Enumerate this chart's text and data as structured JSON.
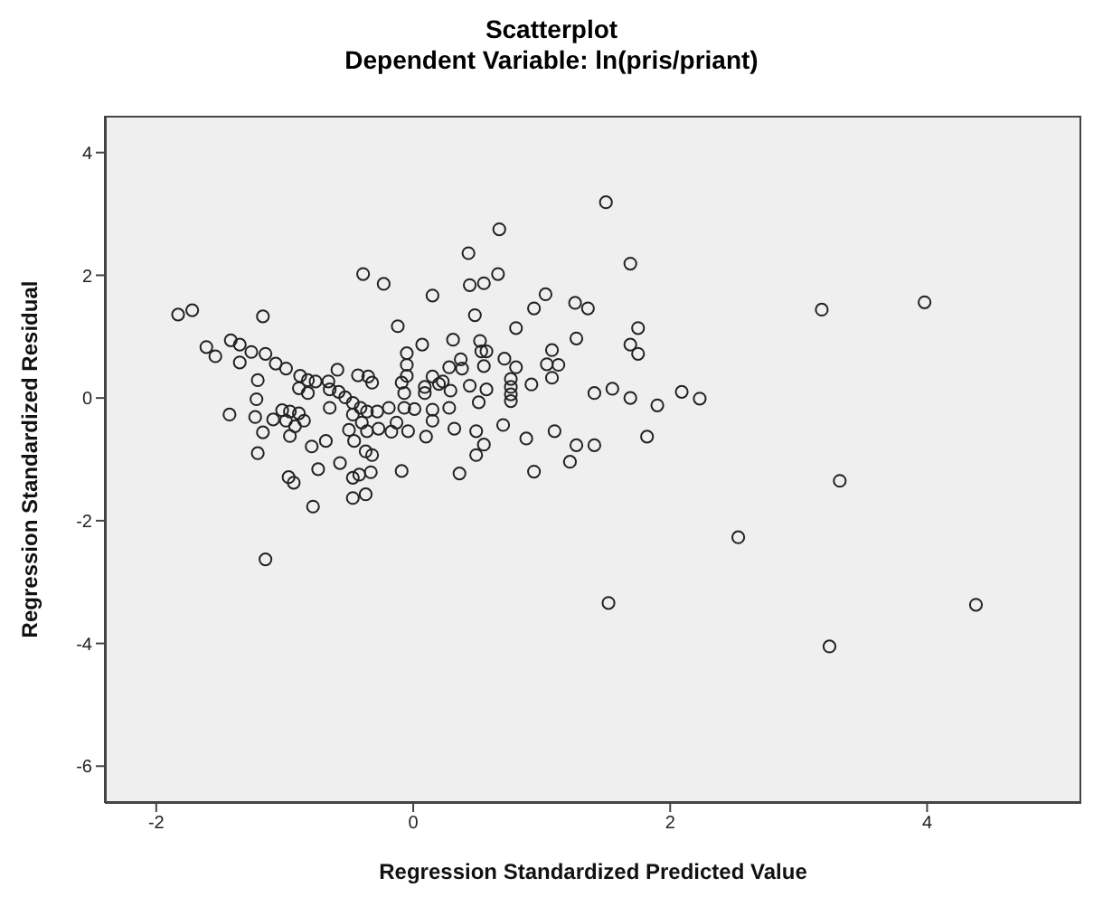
{
  "chart_data": {
    "type": "scatter",
    "title": "Scatterplot",
    "subtitle": "Dependent Variable: ln(pris/priant)",
    "xlabel": "Regression Standardized Predicted Value",
    "ylabel": "Regression Standardized Residual",
    "xlim": [
      -2.4,
      5.2
    ],
    "ylim": [
      -6.6,
      4.6
    ],
    "xticks": [
      -2,
      0,
      2,
      4
    ],
    "yticks": [
      -6,
      -4,
      -2,
      0,
      2,
      4
    ],
    "grid": false,
    "marker": "circle",
    "series": [
      {
        "color": "#222222",
        "x": [
          0.43,
          -0.39,
          -0.23,
          0.44,
          0.55,
          0.66,
          0.15,
          -1.17,
          -1.83,
          -1.72,
          0.48,
          1.03,
          0.94,
          1.26,
          1.36,
          -0.12,
          0.8,
          1.27,
          -1.61,
          -1.54,
          -1.42,
          -1.35,
          -1.35,
          -1.26,
          -1.15,
          -1.07,
          -0.99,
          -1.21,
          -1.22,
          -1.43,
          -1.23,
          -1.17,
          -1.21,
          -1.09,
          -1.02,
          -0.96,
          -0.89,
          -0.99,
          -0.92,
          -0.85,
          -0.96,
          -0.88,
          -0.82,
          -0.89,
          -0.82,
          -0.76,
          -0.66,
          -0.59,
          -0.65,
          -0.65,
          -0.58,
          -0.53,
          -0.47,
          -0.41,
          -0.36,
          -0.28,
          -0.43,
          -0.35,
          -0.32,
          -0.47,
          -0.5,
          -0.4,
          -0.36,
          -0.27,
          -0.19,
          -0.17,
          -0.46,
          -0.37,
          -0.32,
          -0.68,
          -0.79,
          -0.57,
          -0.74,
          -0.97,
          -0.93,
          -0.47,
          -0.42,
          -0.33,
          -0.47,
          -0.37,
          -0.78,
          -1.15,
          -0.09,
          -0.05,
          -0.05,
          -0.05,
          -0.09,
          -0.07,
          0.07,
          -0.07,
          0.01,
          -0.13,
          -0.04,
          0.1,
          0.15,
          0.15,
          0.09,
          0.15,
          0.2,
          0.23,
          0.09,
          0.29,
          0.28,
          0.31,
          0.28,
          0.37,
          0.38,
          0.44,
          0.32,
          0.52,
          0.53,
          0.57,
          0.55,
          0.57,
          0.51,
          0.49,
          0.55,
          0.49,
          0.36,
          0.71,
          0.8,
          0.76,
          0.76,
          0.76,
          0.76,
          0.7,
          0.92,
          1.08,
          1.04,
          1.13,
          1.08,
          0.88,
          1.1,
          0.94,
          1.27,
          1.22,
          1.41,
          1.41,
          1.55,
          0.67,
          1.5,
          1.69,
          1.75,
          1.69,
          1.75,
          1.69,
          1.9,
          2.09,
          2.23,
          1.82,
          3.18,
          3.98,
          3.32,
          2.53,
          4.38,
          3.24,
          1.52
        ],
        "values": [
          2.36,
          2.02,
          1.86,
          1.84,
          1.87,
          2.02,
          1.67,
          1.33,
          1.36,
          1.43,
          1.35,
          1.69,
          1.46,
          1.55,
          1.46,
          1.17,
          1.14,
          0.97,
          0.83,
          0.68,
          0.94,
          0.87,
          0.58,
          0.75,
          0.72,
          0.56,
          0.48,
          0.29,
          -0.02,
          -0.27,
          -0.31,
          -0.56,
          -0.9,
          -0.35,
          -0.2,
          -0.22,
          -0.25,
          -0.37,
          -0.46,
          -0.37,
          -0.62,
          0.36,
          0.29,
          0.16,
          0.08,
          0.27,
          0.27,
          0.46,
          0.14,
          -0.16,
          0.1,
          0.01,
          -0.08,
          -0.16,
          -0.22,
          -0.22,
          0.37,
          0.35,
          0.25,
          -0.27,
          -0.52,
          -0.4,
          -0.54,
          -0.5,
          -0.16,
          -0.55,
          -0.7,
          -0.87,
          -0.93,
          -0.7,
          -0.79,
          -1.06,
          -1.16,
          -1.29,
          -1.38,
          -1.3,
          -1.25,
          -1.21,
          -1.63,
          -1.57,
          -1.77,
          -2.63,
          -1.19,
          0.73,
          0.54,
          0.36,
          0.25,
          0.08,
          0.87,
          -0.16,
          -0.18,
          -0.4,
          -0.54,
          -0.63,
          -0.37,
          -0.19,
          0.08,
          0.35,
          0.23,
          0.27,
          0.18,
          0.12,
          -0.16,
          0.95,
          0.5,
          0.63,
          0.48,
          0.2,
          -0.5,
          0.93,
          0.76,
          0.76,
          0.52,
          0.14,
          -0.07,
          -0.54,
          -0.76,
          -0.93,
          -1.23,
          0.64,
          0.5,
          0.31,
          0.18,
          0.06,
          -0.05,
          -0.44,
          0.22,
          0.78,
          0.55,
          0.54,
          0.33,
          -0.66,
          -0.54,
          -1.2,
          -0.77,
          -1.04,
          -0.77,
          0.08,
          0.15,
          2.75,
          3.19,
          2.19,
          1.14,
          0.87,
          0.72,
          0.0,
          -0.12,
          0.1,
          -0.01,
          -0.63,
          1.44,
          1.56,
          -1.35,
          -2.27,
          -3.37,
          -4.05,
          -3.34
        ]
      }
    ]
  }
}
